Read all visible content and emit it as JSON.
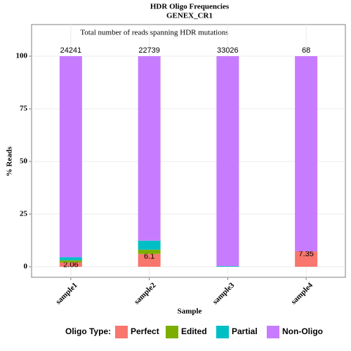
{
  "chart_data": {
    "type": "stacked_bar",
    "title": "HDR Oligo Frequencies",
    "subtitle": "GENEX_CR1",
    "annotation": "Total number of reads spanning HDR mutations",
    "xlabel": "Sample",
    "ylabel": "% Reads",
    "legend_title": "Oligo Type:",
    "legend": "bottom",
    "grid": true,
    "categories": [
      "sample1",
      "sample2",
      "sample3",
      "sample4"
    ],
    "read_counts": [
      24241,
      22739,
      33026,
      68
    ],
    "series": [
      {
        "name": "Perfect",
        "color": "#F8766D",
        "values": [
          2.06,
          6.1,
          0,
          7.35
        ]
      },
      {
        "name": "Edited",
        "color": "#7CAE00",
        "values": [
          1.0,
          2.0,
          0,
          0
        ]
      },
      {
        "name": "Partial",
        "color": "#00BFC4",
        "values": [
          1.5,
          4.3,
          0.3,
          0
        ]
      },
      {
        "name": "Non-Oligo",
        "color": "#C77CFF",
        "values": [
          95.44,
          87.6,
          99.7,
          92.65
        ]
      }
    ],
    "ylim": [
      -5,
      115
    ],
    "yticks": [
      0,
      25,
      50,
      75,
      100
    ]
  }
}
